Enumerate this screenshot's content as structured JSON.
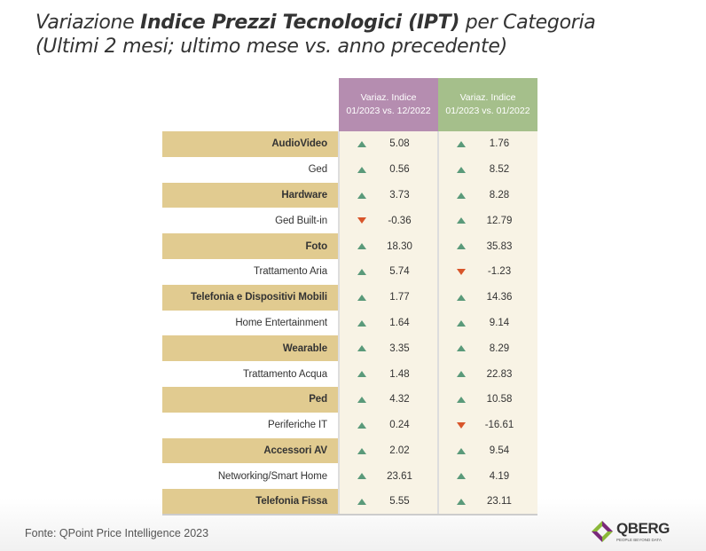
{
  "title": {
    "pre": "Variazione ",
    "bold": "Indice Prezzi Tecnologici (IPT)",
    "post": " per Categoria",
    "line2": "(Ultimi 2 mesi; ultimo mese vs. anno precedente)"
  },
  "chart_data": {
    "type": "table",
    "columns": [
      "Variaz. Indice 01/2023 vs. 12/2022",
      "Variaz. Indice 01/2023 vs. 01/2022"
    ],
    "column_colors": [
      "#b58db0",
      "#a5bf8b"
    ],
    "categories": [
      "AudioVideo",
      "Ged",
      "Hardware",
      "Ged Built-in",
      "Foto",
      "Trattamento Aria",
      "Telefonia e Dispositivi Mobili",
      "Home Entertainment",
      "Wearable",
      "Trattamento Acqua",
      "Ped",
      "Periferiche IT",
      "Accessori AV",
      "Networking/Smart Home",
      "Telefonia Fissa"
    ],
    "series": [
      {
        "values": [
          "5.08",
          "0.56",
          "3.73",
          "-0.36",
          "18.30",
          "5.74",
          "1.77",
          "1.64",
          "3.35",
          "1.48",
          "4.32",
          "0.24",
          "2.02",
          "23.61",
          "5.55"
        ]
      },
      {
        "values": [
          "1.76",
          "8.52",
          "8.28",
          "12.79",
          "35.83",
          "-1.23",
          "14.36",
          "9.14",
          "8.29",
          "22.83",
          "10.58",
          "-16.61",
          "9.54",
          "4.19",
          "23.11"
        ]
      }
    ],
    "indicator_colors": {
      "up": "#5a9a7a",
      "down": "#d8552a"
    }
  },
  "header": {
    "c1l1": "Variaz. Indice",
    "c1l2": "01/2023 vs. 12/2022",
    "c2l1": "Variaz. Indice",
    "c2l2": "01/2023 vs. 01/2022"
  },
  "source": "Fonte: QPoint Price Intelligence 2023",
  "logo": {
    "name": "QBERG",
    "tagline": "PEOPLE BEYOND DATA"
  }
}
